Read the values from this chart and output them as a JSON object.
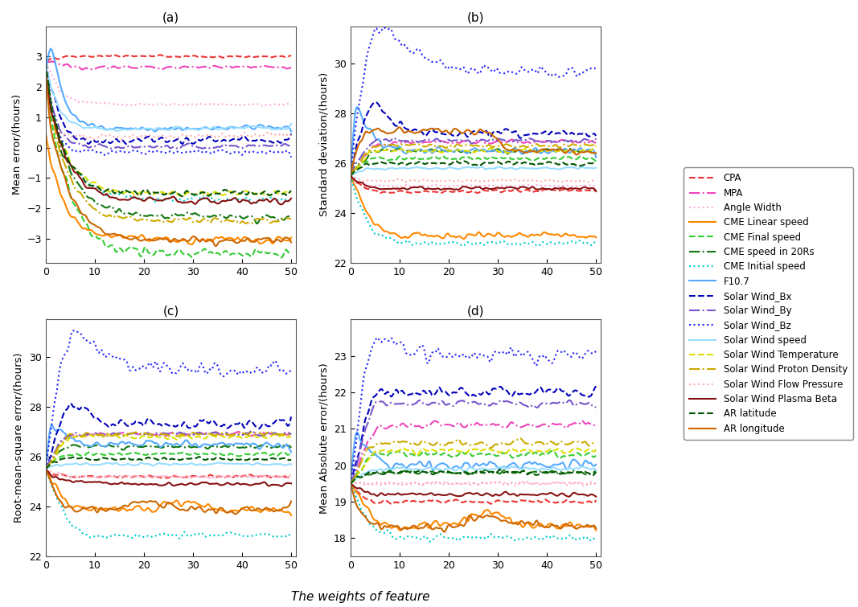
{
  "subplot_labels": [
    "(a)",
    "(b)",
    "(c)",
    "(d)"
  ],
  "subplot_ylabels": [
    "Mean error/(hours)",
    "Standard deviation/(hours)",
    "Root-mean-square error/(hours)",
    "Mean Absolute error/(hours)"
  ],
  "xlabel": "The weights of feature",
  "legend_entries": [
    {
      "label": "CPA",
      "color": "#ee3333",
      "linestyle": "--",
      "linewidth": 1.5
    },
    {
      "label": "MPA",
      "color": "#ee44bb",
      "linestyle": "-.",
      "linewidth": 1.5
    },
    {
      "label": "Angle Width",
      "color": "#ffaadd",
      "linestyle": ":",
      "linewidth": 1.5
    },
    {
      "label": "CME Linear speed",
      "color": "#ff8800",
      "linestyle": "-",
      "linewidth": 1.5
    },
    {
      "label": "CME Final speed",
      "color": "#33cc33",
      "linestyle": "--",
      "linewidth": 1.5
    },
    {
      "label": "CME speed in 20Rs",
      "color": "#117711",
      "linestyle": "-.",
      "linewidth": 1.5
    },
    {
      "label": "CME Initial speed",
      "color": "#00cccc",
      "linestyle": ":",
      "linewidth": 1.5
    },
    {
      "label": "F10.7",
      "color": "#55aaff",
      "linestyle": "-",
      "linewidth": 1.5
    },
    {
      "label": "Solar Wind_Bx",
      "color": "#0000bb",
      "linestyle": "--",
      "linewidth": 1.5
    },
    {
      "label": "Solar Wind_By",
      "color": "#7755cc",
      "linestyle": "-.",
      "linewidth": 1.5
    },
    {
      "label": "Solar Wind_Bz",
      "color": "#2222ff",
      "linestyle": ":",
      "linewidth": 1.5
    },
    {
      "label": "Solar Wind speed",
      "color": "#99ddff",
      "linestyle": "-",
      "linewidth": 1.5
    },
    {
      "label": "Solar Wind Temperature",
      "color": "#dddd00",
      "linestyle": "--",
      "linewidth": 1.5
    },
    {
      "label": "Solar Wind Proton Density",
      "color": "#ccaa00",
      "linestyle": "-.",
      "linewidth": 1.5
    },
    {
      "label": "Solar Wind Flow Pressure",
      "color": "#ffaaaa",
      "linestyle": ":",
      "linewidth": 1.5
    },
    {
      "label": "Solar Wind Plasma Beta",
      "color": "#881111",
      "linestyle": "-",
      "linewidth": 1.5
    },
    {
      "label": "AR latitude",
      "color": "#005500",
      "linestyle": "--",
      "linewidth": 1.5
    },
    {
      "label": "AR longitude",
      "color": "#cc6600",
      "linestyle": "-",
      "linewidth": 1.5
    }
  ],
  "figsize": [
    10.67,
    7.55
  ],
  "dpi": 100
}
